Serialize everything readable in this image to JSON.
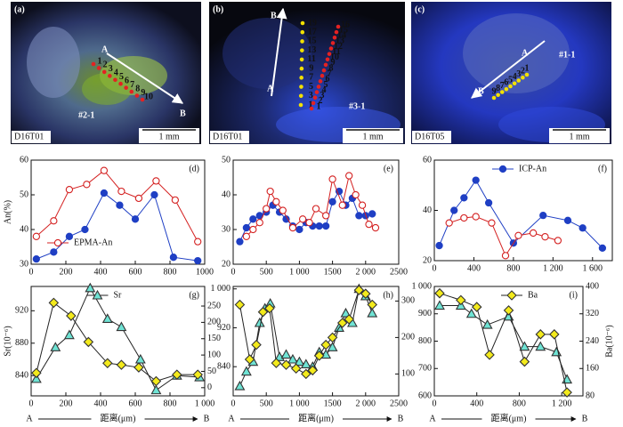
{
  "images": [
    {
      "label": "(a)",
      "sample": "D16T01",
      "scale": "1 mm",
      "spot": "#2-1",
      "start": "A",
      "end": "B",
      "point_labels": [
        [
          "1",
          "2",
          "3",
          "4",
          "5",
          "6",
          "7",
          "8",
          "9",
          "10"
        ]
      ]
    },
    {
      "label": "(b)",
      "sample": "D16T01",
      "scale": "1 mm",
      "spot": "#3-1",
      "start": "A",
      "end": "B",
      "point_labels": [
        [
          "1",
          "3",
          "5",
          "7",
          "9",
          "11",
          "13",
          "15",
          "17",
          "19"
        ],
        [
          "1",
          "2",
          "3",
          "4",
          "5",
          "6",
          "7",
          "8",
          "9",
          "10",
          "11",
          "12",
          "13",
          "14",
          "15",
          "16"
        ]
      ]
    },
    {
      "label": "(c)",
      "sample": "D16T05",
      "scale": "1 mm",
      "spot": "#1-1",
      "start": "A",
      "end": "B",
      "point_labels": [
        [
          "9",
          "8",
          "7",
          "6",
          "5",
          "4",
          "3",
          "2",
          "1"
        ]
      ]
    }
  ],
  "chart_data": [
    {
      "type": "line",
      "panel": "(d)",
      "ylabel": "An(%)",
      "xlim": [
        0,
        1000
      ],
      "xticks": [
        0,
        200,
        400,
        600,
        800,
        1000
      ],
      "ylim": [
        30,
        60
      ],
      "yticks": [
        30,
        40,
        50,
        60
      ],
      "legend": "lower left",
      "series": [
        {
          "color": "#1f3fc4",
          "marker": "circle",
          "filled": true,
          "x": [
            30,
            130,
            220,
            310,
            420,
            510,
            600,
            710,
            820,
            960
          ],
          "values": [
            31.5,
            33.5,
            38,
            40,
            50.5,
            47,
            43,
            50,
            32,
            31
          ]
        },
        {
          "name": "EPMA-An",
          "color": "#d42020",
          "marker": "circle",
          "filled": false,
          "x": [
            30,
            130,
            220,
            320,
            420,
            520,
            620,
            720,
            830,
            960
          ],
          "values": [
            38,
            42.5,
            51.5,
            53,
            57,
            51,
            49,
            54,
            48.5,
            36.5
          ]
        }
      ]
    },
    {
      "type": "line",
      "panel": "(e)",
      "xlim": [
        0,
        2500
      ],
      "xticks": [
        0,
        500,
        {
          "value": 1000,
          "label": "1 000"
        },
        1500,
        {
          "value": 2000,
          "label": "2 000"
        },
        2500
      ],
      "ylim": [
        20,
        50
      ],
      "yticks": [
        20,
        30,
        40,
        50
      ],
      "series": [
        {
          "color": "#1f3fc4",
          "marker": "circle",
          "filled": true,
          "x": [
            100,
            200,
            300,
            400,
            500,
            600,
            700,
            800,
            900,
            1000,
            1100,
            1200,
            1300,
            1400,
            1500,
            1600,
            1700,
            1800,
            1900,
            2000,
            2100
          ],
          "values": [
            26.5,
            30.5,
            33,
            34,
            35,
            37,
            35,
            33,
            31,
            30,
            32,
            31,
            31,
            31,
            38,
            41,
            37,
            39,
            34,
            34,
            34.5
          ]
        },
        {
          "color": "#d42020",
          "marker": "circle",
          "filled": false,
          "x": [
            200,
            300,
            400,
            500,
            560,
            650,
            750,
            900,
            1050,
            1150,
            1250,
            1400,
            1500,
            1650,
            1750,
            1850,
            1950,
            2050,
            2150
          ],
          "values": [
            28,
            30,
            32,
            36,
            41,
            38,
            35.5,
            30.5,
            33,
            32,
            36,
            34,
            44.5,
            37,
            45.5,
            40,
            37,
            31.5,
            30.5
          ]
        }
      ]
    },
    {
      "type": "line",
      "panel": "(f)",
      "xlim": [
        0,
        1800
      ],
      "xticks": [
        0,
        400,
        800,
        {
          "value": 1200,
          "label": "1 200"
        },
        {
          "value": 1600,
          "label": "1 600"
        }
      ],
      "ylim": [
        20,
        60
      ],
      "yticks": [
        20,
        40,
        60
      ],
      "legend": "upper center",
      "series": [
        {
          "name": "ICP-An",
          "color": "#1f3fc4",
          "marker": "circle",
          "filled": true,
          "x": [
            50,
            200,
            300,
            420,
            550,
            800,
            1100,
            1350,
            1500,
            1700
          ],
          "values": [
            26,
            40,
            45,
            52,
            43,
            27,
            38,
            36,
            33,
            25
          ]
        },
        {
          "color": "#d42020",
          "marker": "circle",
          "filled": false,
          "x": [
            150,
            300,
            420,
            580,
            720,
            850,
            1000,
            1120,
            1250
          ],
          "values": [
            35,
            37,
            37.5,
            35,
            22,
            30,
            31,
            29.5,
            28
          ]
        }
      ]
    },
    {
      "type": "line",
      "panel": "(g)",
      "ylabel": "Sr(10⁻⁶)",
      "xlabel": "距离(μm)",
      "xstart": "A",
      "xend": "B",
      "xlim": [
        0,
        1000
      ],
      "xticks": [
        0,
        200,
        400,
        600,
        800,
        {
          "value": 1000,
          "label": "1 000"
        }
      ],
      "ylim": [
        815,
        950
      ],
      "yticks": [
        840,
        880,
        920
      ],
      "y2lim": [
        -25,
        310
      ],
      "y2ticks": [
        0,
        50,
        100,
        150,
        200,
        250
      ],
      "legend": "upper center",
      "series": [
        {
          "name": "Sr",
          "color": "#6fe3d4",
          "line_color": "#222",
          "marker": "triangle",
          "filled": true,
          "x": [
            30,
            140,
            220,
            340,
            440,
            520,
            630,
            720,
            840,
            970
          ],
          "values": [
            836,
            875,
            890,
            948,
            910,
            900,
            860,
            822,
            840,
            838
          ]
        },
        {
          "color": "#f3ea1c",
          "line_color": "#222",
          "marker": "diamond",
          "filled": true,
          "axis": "y2",
          "x": [
            30,
            130,
            230,
            330,
            440,
            520,
            620,
            720,
            840,
            960
          ],
          "values": [
            45,
            260,
            220,
            140,
            75,
            70,
            62,
            20,
            40,
            40
          ]
        }
      ]
    },
    {
      "type": "line",
      "panel": "(h)",
      "xlabel": "距离(μm)",
      "xstart": "A",
      "xend": "B",
      "xlim": [
        0,
        2500
      ],
      "xticks": [
        0,
        500,
        {
          "value": 1000,
          "label": "1 000"
        },
        1500,
        {
          "value": 2000,
          "label": "2 000"
        },
        2500
      ],
      "ylim": [
        780,
        1005
      ],
      "yticks": [
        840,
        920,
        {
          "value": 1000,
          "label": "1 000"
        }
      ],
      "y2lim": [
        40,
        340
      ],
      "y2ticks": [
        100,
        200,
        300
      ],
      "series": [
        {
          "color": "#6fe3d4",
          "line_color": "#222",
          "marker": "triangle",
          "filled": true,
          "x": [
            100,
            200,
            300,
            400,
            480,
            560,
            700,
            800,
            900,
            1000,
            1100,
            1200,
            1300,
            1400,
            1500,
            1600,
            1700,
            1800,
            1900,
            2000,
            2100
          ],
          "values": [
            800,
            830,
            850,
            930,
            960,
            970,
            860,
            865,
            855,
            850,
            845,
            840,
            870,
            865,
            880,
            920,
            950,
            930,
            1000,
            985,
            950
          ]
        },
        {
          "color": "#f3ea1c",
          "line_color": "#222",
          "marker": "diamond",
          "filled": true,
          "axis": "y2",
          "x": [
            100,
            250,
            350,
            450,
            550,
            650,
            800,
            950,
            1100,
            1200,
            1300,
            1400,
            1500,
            1650,
            1750,
            1900,
            2000,
            2100
          ],
          "values": [
            290,
            140,
            180,
            270,
            280,
            130,
            125,
            115,
            100,
            110,
            150,
            180,
            200,
            240,
            250,
            330,
            320,
            290
          ]
        }
      ]
    },
    {
      "type": "line",
      "panel": "(i)",
      "y2label": "Ba(10⁻⁶)",
      "xlabel": "距离(μm)",
      "xstart": "A",
      "xend": "B",
      "xlim": [
        0,
        1400
      ],
      "xticks": [
        0,
        400,
        800,
        {
          "value": 1200,
          "label": "1 200"
        }
      ],
      "ylim": [
        600,
        1000
      ],
      "yticks": [
        600,
        700,
        800,
        900,
        {
          "value": 1000,
          "label": "1 000"
        }
      ],
      "y2lim": [
        80,
        400
      ],
      "y2ticks": [
        80,
        160,
        240,
        320,
        400
      ],
      "legend": "upper right",
      "series": [
        {
          "color": "#6fe3d4",
          "line_color": "#222",
          "marker": "triangle",
          "filled": true,
          "x": [
            50,
            250,
            350,
            500,
            700,
            850,
            1000,
            1150,
            1250
          ],
          "values": [
            930,
            930,
            900,
            860,
            890,
            780,
            780,
            760,
            660
          ]
        },
        {
          "name": "Ba",
          "color": "#f3ea1c",
          "line_color": "#222",
          "marker": "diamond",
          "filled": true,
          "axis": "y2",
          "x": [
            50,
            250,
            400,
            520,
            700,
            850,
            1000,
            1130,
            1250
          ],
          "values": [
            380,
            360,
            340,
            200,
            330,
            180,
            260,
            260,
            90
          ]
        }
      ]
    }
  ]
}
